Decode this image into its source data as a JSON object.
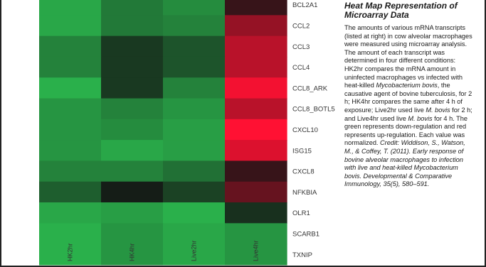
{
  "chart_data": {
    "type": "heatmap",
    "x": [
      "HK2hr",
      "HK4hr",
      "Live2hr",
      "Live4hr"
    ],
    "y": [
      "BCL2A1",
      "CCL2",
      "CCL3",
      "CCL4",
      "CCL8_ARK",
      "CCL8_BOTL5",
      "CXCL10",
      "ISG15",
      "CXCL8",
      "NFKBIA",
      "OLR1",
      "SCARB1",
      "TXNIP"
    ],
    "values": [
      [
        -0.8,
        -0.55,
        -0.65,
        0.15
      ],
      [
        -0.8,
        -0.55,
        -0.6,
        0.55
      ],
      [
        -0.6,
        -0.2,
        -0.35,
        0.7
      ],
      [
        -0.6,
        -0.2,
        -0.35,
        0.7
      ],
      [
        -0.85,
        -0.2,
        -0.6,
        0.95
      ],
      [
        -0.7,
        -0.6,
        -0.7,
        0.7
      ],
      [
        -0.7,
        -0.65,
        -0.75,
        1.0
      ],
      [
        -0.7,
        -0.8,
        -0.75,
        0.85
      ],
      [
        -0.6,
        -0.6,
        -0.5,
        0.15
      ],
      [
        -0.4,
        -0.05,
        -0.25,
        0.35
      ],
      [
        -0.8,
        -0.75,
        -0.85,
        -0.15
      ],
      [
        -0.85,
        -0.7,
        -0.8,
        -0.7
      ],
      [
        -0.85,
        -0.7,
        -0.8,
        -0.7
      ]
    ],
    "color_low": "#2ecc55",
    "color_mid": "#141414",
    "color_high": "#ff1133",
    "caption_title": "Heat Map Representation of Microarray Data",
    "caption_parts": [
      {
        "text": "The amounts of various mRNA transcripts (listed at right) in cow alveolar macrophages were measured using microarray analysis. The amount of each transcript was determined in four different conditions: HK2hr compares the mRNA amount in uninfected macrophages vs infected with heat-killed ",
        "italic": false
      },
      {
        "text": "Mycobacterium bovis",
        "italic": true
      },
      {
        "text": ", the causative agent of bovine tuberculosis, for 2 h; HK4hr compares the same after 4 h of exposure; Live2hr used live ",
        "italic": false
      },
      {
        "text": "M. bovis",
        "italic": true
      },
      {
        "text": " for 2 h; and Live4hr used live ",
        "italic": false
      },
      {
        "text": "M. bovis",
        "italic": true
      },
      {
        "text": " for 4 h. The green represents down-regulation and red represents up-regulation. Each value was normalized. ",
        "italic": false
      },
      {
        "text": "Credit: Widdison, S., Watson, M., & Coffey, T. (2011). Early response of bovine alveolar macrophages to infection with live and heat-killed Mycobacterium bovis. Developmental & Comparative Immunology, 35(5), 580–591.",
        "italic": true
      }
    ]
  }
}
